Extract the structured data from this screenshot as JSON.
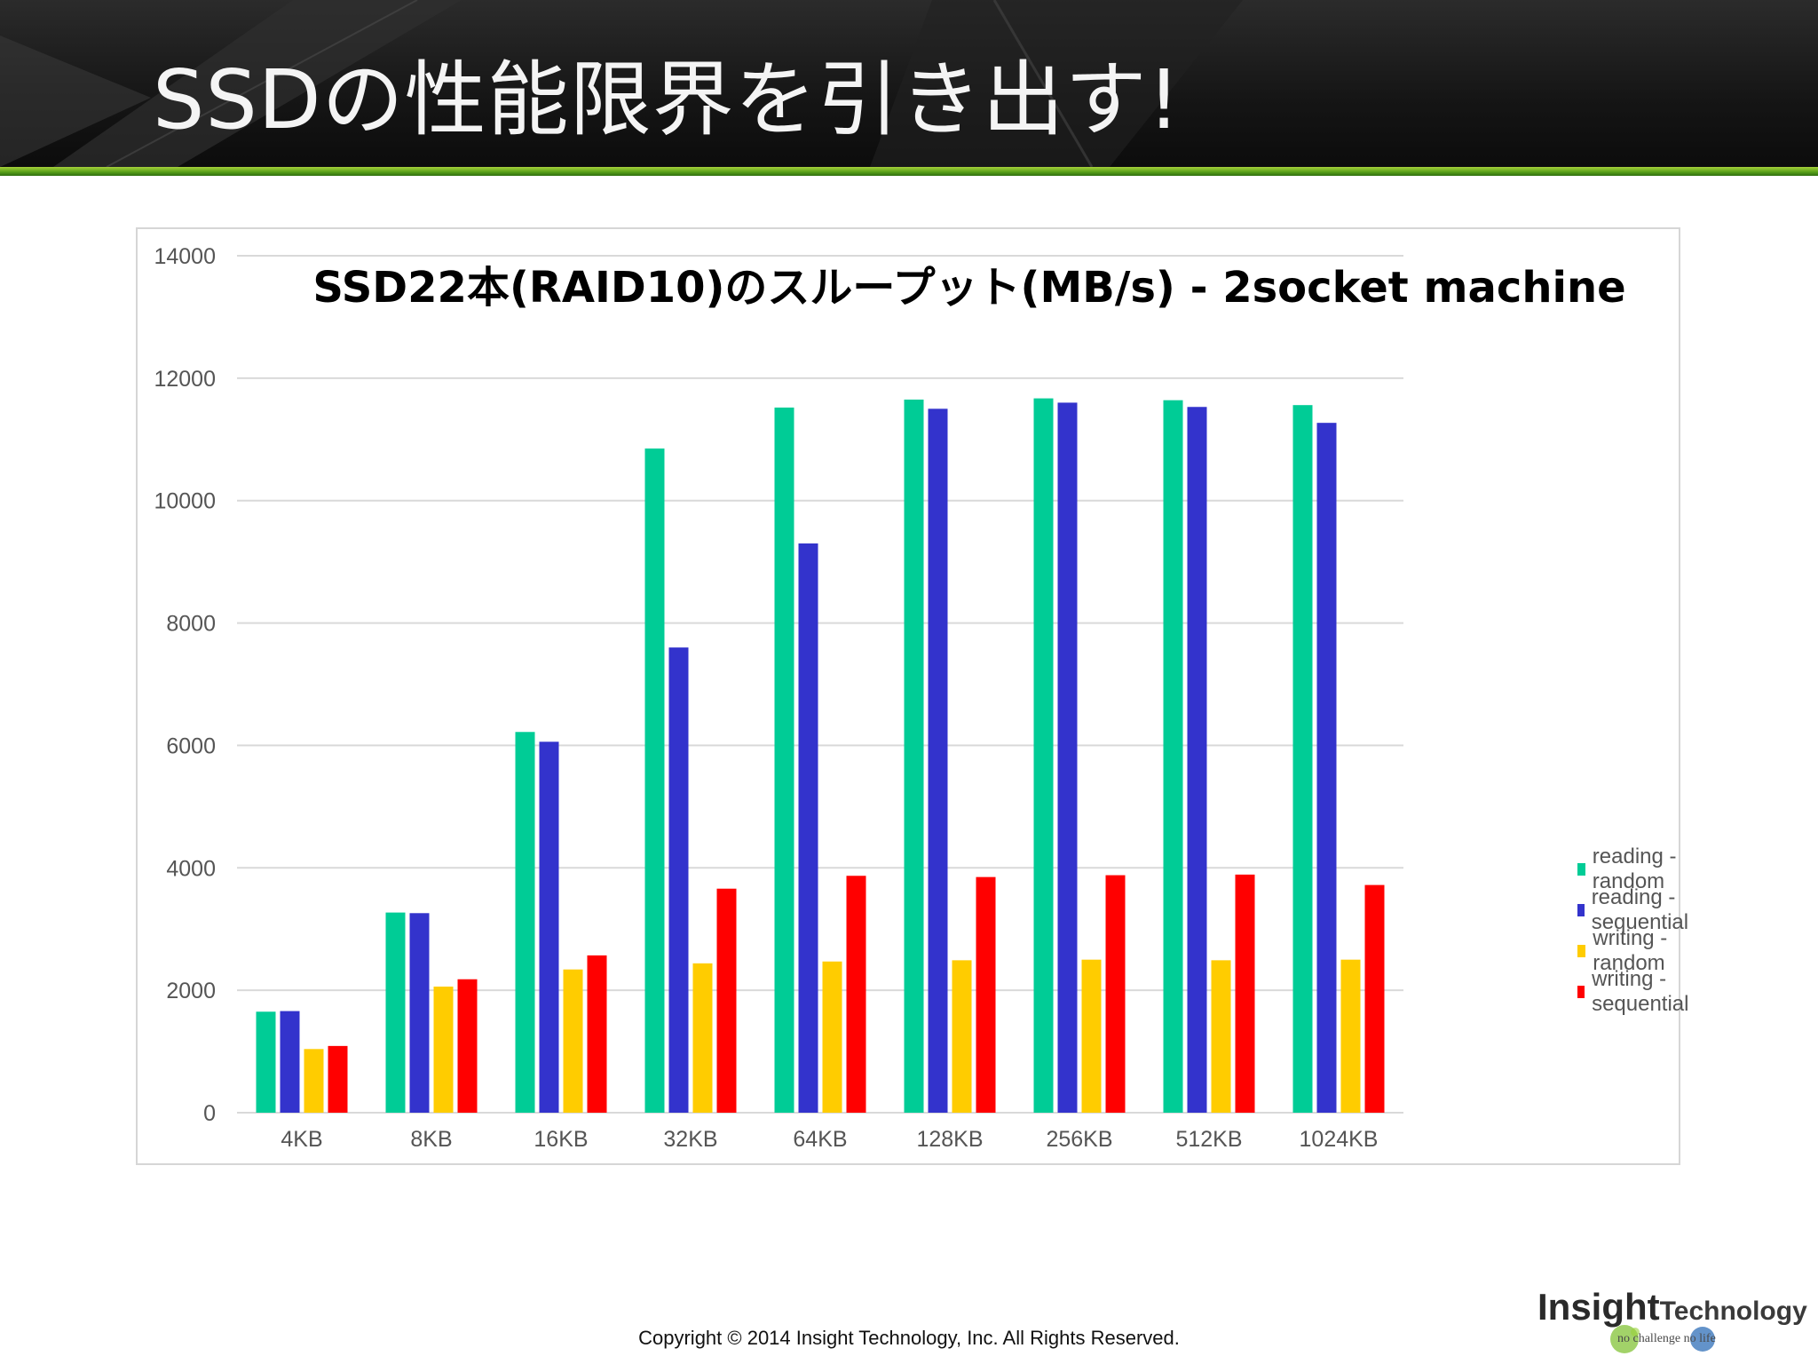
{
  "slide": {
    "title": "SSDの性能限界を引き出す!"
  },
  "footer": {
    "copyright": "Copyright © 2014 Insight Technology, Inc. All Rights Reserved."
  },
  "logo": {
    "name_main": "Insight",
    "name_sub": "Technology",
    "tagline": "no challenge no life"
  },
  "colors": {
    "reading_random": "#00cc96",
    "reading_sequential": "#3333cc",
    "writing_random": "#ffcc00",
    "writing_sequential": "#ff0000",
    "header_bg": "#161616",
    "header_rule": "#6cb12a"
  },
  "chart_data": {
    "type": "bar",
    "title": "SSD22本(RAID10)のスループット(MB/s) - 2socket machine",
    "xlabel": "",
    "ylabel": "",
    "ylim": [
      0,
      14000
    ],
    "yticks": [
      0,
      2000,
      4000,
      6000,
      8000,
      10000,
      12000,
      14000
    ],
    "grid": true,
    "legend_position": "right",
    "categories": [
      "4KB",
      "8KB",
      "16KB",
      "32KB",
      "64KB",
      "128KB",
      "256KB",
      "512KB",
      "1024KB"
    ],
    "series": [
      {
        "name": "reading - random",
        "color": "#00cc96",
        "values": [
          1650,
          3270,
          6220,
          10850,
          11520,
          11650,
          11670,
          11640,
          11560
        ]
      },
      {
        "name": "reading - sequential",
        "color": "#3333cc",
        "values": [
          1660,
          3260,
          6060,
          7600,
          9300,
          11500,
          11600,
          11530,
          11270
        ]
      },
      {
        "name": "writing - random",
        "color": "#ffcc00",
        "values": [
          1040,
          2060,
          2340,
          2440,
          2470,
          2490,
          2500,
          2490,
          2500
        ]
      },
      {
        "name": "writing - sequential",
        "color": "#ff0000",
        "values": [
          1090,
          2180,
          2570,
          3660,
          3870,
          3850,
          3880,
          3890,
          3720
        ]
      }
    ]
  }
}
